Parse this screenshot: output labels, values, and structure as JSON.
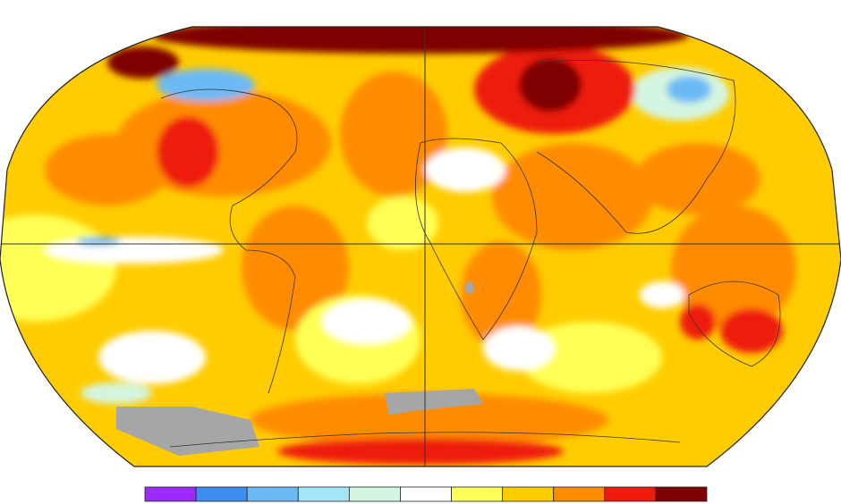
{
  "colorbar": {
    "colors": [
      "#9d2bff",
      "#3d8eef",
      "#6cbaf5",
      "#a3e6fa",
      "#d4f5e0",
      "#ffffff",
      "#ffff55",
      "#ffcc00",
      "#ff8c00",
      "#ee1b0b",
      "#7f0000"
    ]
  }
}
